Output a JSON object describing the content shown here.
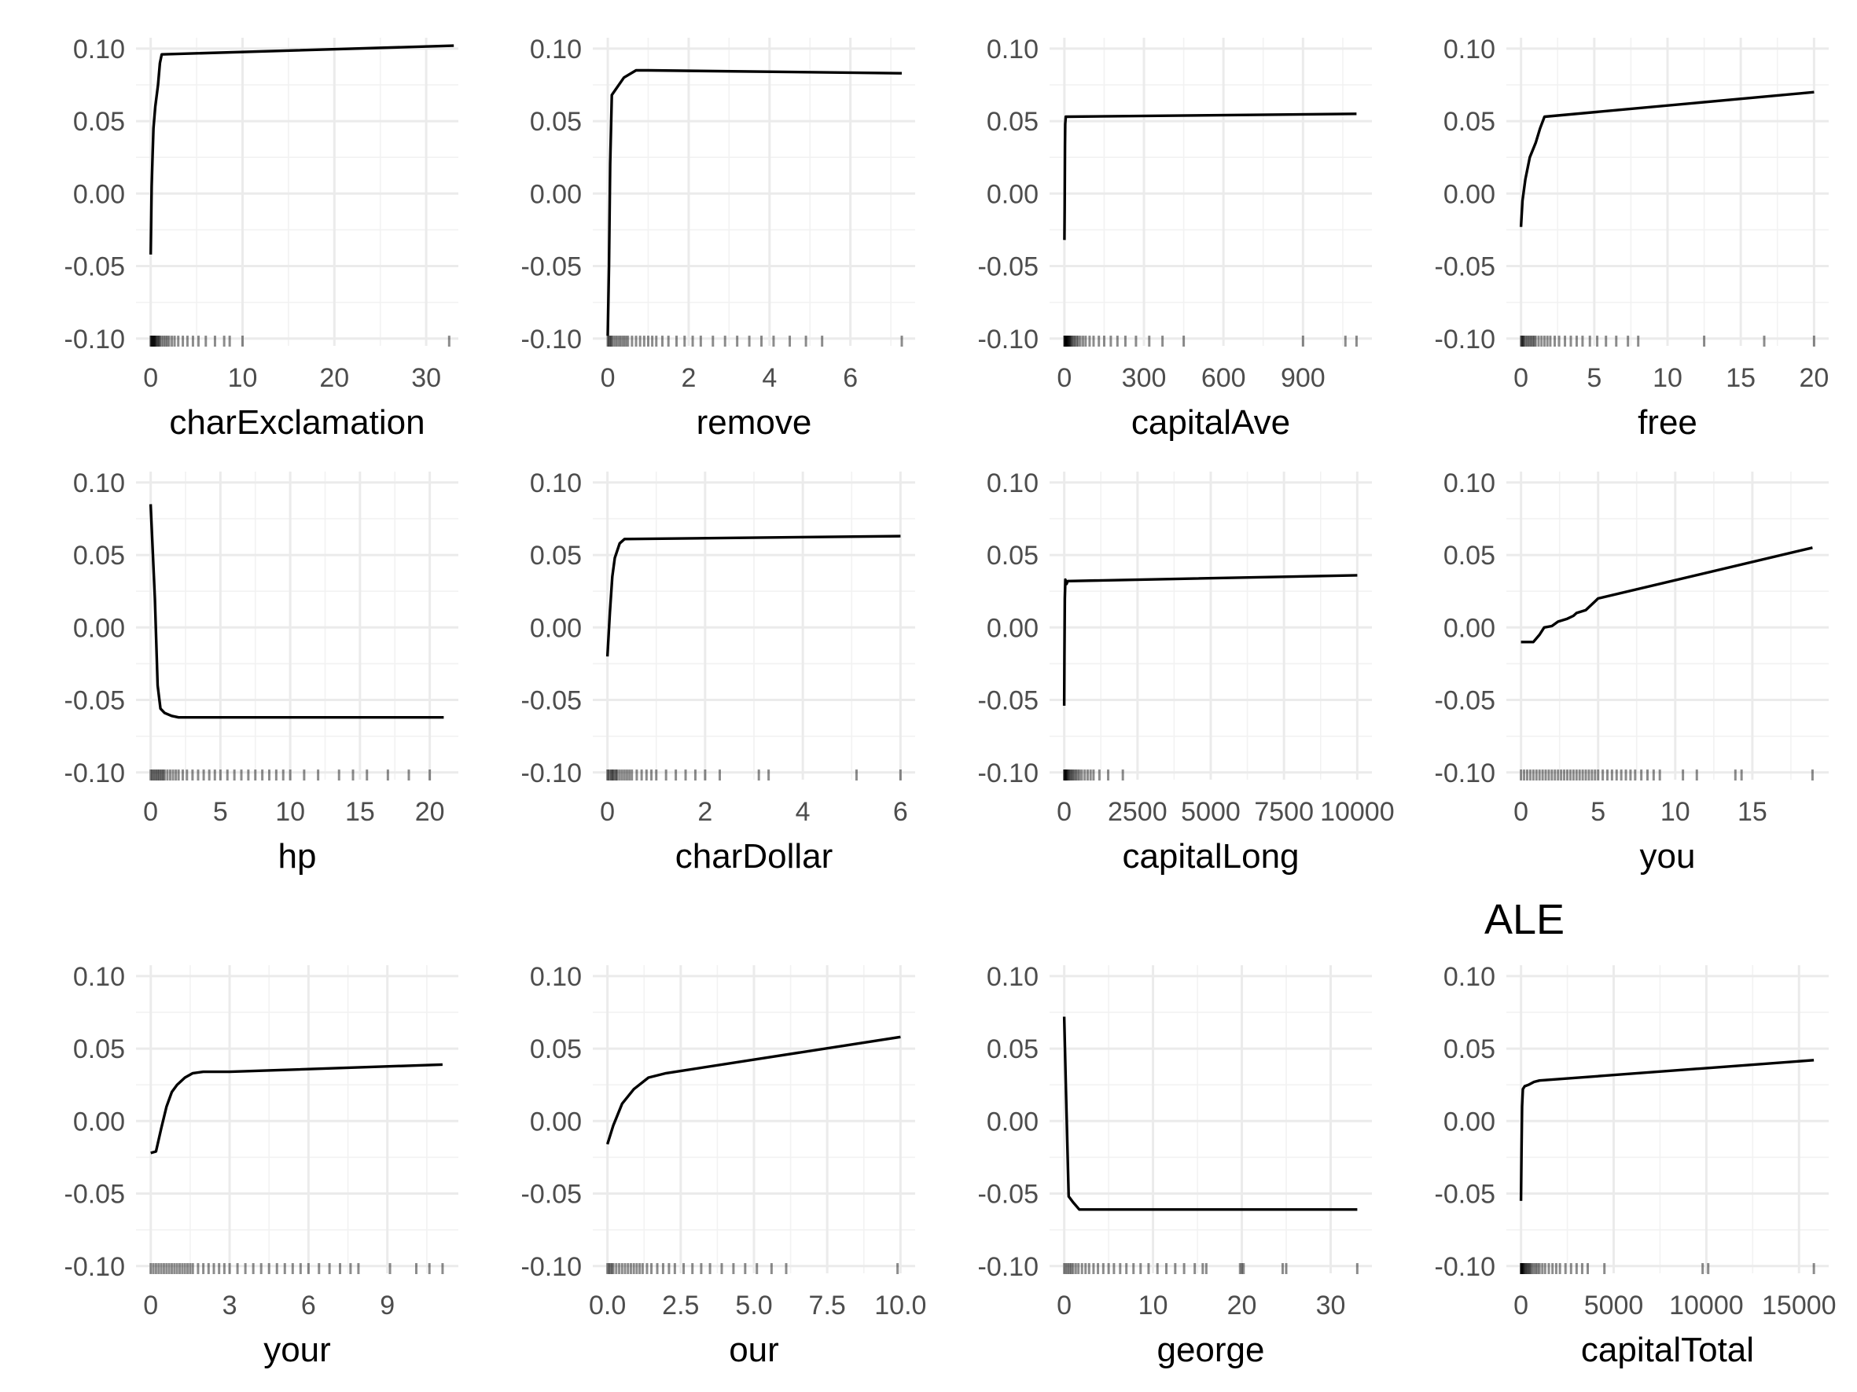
{
  "figure_title": "ALE",
  "chart_data": [
    {
      "type": "line",
      "xlabel": "charExclamation",
      "xlim": [
        -1.6,
        33.5
      ],
      "ylim": [
        -0.105,
        0.1075
      ],
      "xticks": [
        0,
        10,
        20,
        30
      ],
      "yticks": [
        -0.1,
        -0.05,
        0.0,
        0.05,
        0.1
      ],
      "grid": true,
      "x": [
        0,
        0.1,
        0.2,
        0.3,
        0.5,
        0.8,
        1.0,
        1.2,
        33
      ],
      "y": [
        -0.042,
        0.005,
        0.025,
        0.045,
        0.06,
        0.075,
        0.09,
        0.096,
        0.102
      ],
      "rug": [
        0,
        0.05,
        0.1,
        0.15,
        0.2,
        0.25,
        0.3,
        0.35,
        0.4,
        0.45,
        0.5,
        0.6,
        0.7,
        0.8,
        0.9,
        1.0,
        1.2,
        1.4,
        1.6,
        1.8,
        2.0,
        2.3,
        2.6,
        3.0,
        3.5,
        4.0,
        4.6,
        5.2,
        6.0,
        7.0,
        8.0,
        8.6,
        10.0,
        32.5
      ]
    },
    {
      "type": "line",
      "xlabel": "remove",
      "xlim": [
        -0.37,
        7.6
      ],
      "ylim": [
        -0.105,
        0.1075
      ],
      "xticks": [
        0,
        2,
        4,
        6
      ],
      "yticks": [
        -0.1,
        -0.05,
        0.0,
        0.05,
        0.1
      ],
      "grid": true,
      "x": [
        0,
        0.03,
        0.06,
        0.1,
        0.2,
        0.4,
        0.7,
        1.0,
        7.27
      ],
      "y": [
        -0.098,
        -0.05,
        0.02,
        0.068,
        0.072,
        0.08,
        0.085,
        0.085,
        0.083
      ],
      "rug": [
        0,
        0.02,
        0.05,
        0.08,
        0.1,
        0.15,
        0.2,
        0.25,
        0.3,
        0.35,
        0.4,
        0.45,
        0.5,
        0.6,
        0.7,
        0.8,
        0.9,
        1.0,
        1.1,
        1.2,
        1.35,
        1.5,
        1.7,
        1.9,
        2.1,
        2.3,
        2.6,
        2.9,
        3.2,
        3.5,
        3.8,
        4.1,
        4.5,
        4.9,
        5.3,
        7.27
      ]
    },
    {
      "type": "line",
      "xlabel": "capitalAve",
      "xlim": [
        -56,
        1160
      ],
      "ylim": [
        -0.105,
        0.1075
      ],
      "xticks": [
        0,
        300,
        600,
        900
      ],
      "yticks": [
        -0.1,
        -0.05,
        0.0,
        0.05,
        0.1
      ],
      "grid": true,
      "x": [
        0,
        1,
        2,
        3,
        5,
        1102
      ],
      "y": [
        -0.032,
        -0.01,
        0.033,
        0.048,
        0.053,
        0.055
      ],
      "rug": [
        0,
        1,
        2,
        3,
        4,
        5,
        6,
        7,
        8,
        9,
        10,
        12,
        14,
        16,
        18,
        20,
        23,
        26,
        30,
        35,
        40,
        46,
        52,
        60,
        70,
        80,
        95,
        110,
        130,
        150,
        175,
        200,
        230,
        270,
        320,
        370,
        450,
        900,
        1060,
        1102
      ]
    },
    {
      "type": "line",
      "xlabel": "free",
      "xlim": [
        -1.0,
        21.0
      ],
      "ylim": [
        -0.105,
        0.1075
      ],
      "xticks": [
        0,
        5,
        10,
        15,
        20
      ],
      "yticks": [
        -0.1,
        -0.05,
        0.0,
        0.05,
        0.1
      ],
      "grid": true,
      "x": [
        0,
        0.1,
        0.3,
        0.6,
        1.0,
        1.3,
        1.6,
        20
      ],
      "y": [
        -0.023,
        -0.005,
        0.01,
        0.025,
        0.035,
        0.045,
        0.053,
        0.07
      ],
      "rug": [
        0,
        0.05,
        0.1,
        0.15,
        0.2,
        0.3,
        0.4,
        0.5,
        0.6,
        0.7,
        0.8,
        0.9,
        1.0,
        1.2,
        1.4,
        1.6,
        1.8,
        2.0,
        2.3,
        2.6,
        3.0,
        3.4,
        3.8,
        4.2,
        4.7,
        5.2,
        5.8,
        6.5,
        7.3,
        8.0,
        12.5,
        16.6,
        20.0
      ]
    },
    {
      "type": "line",
      "xlabel": "hp",
      "xlim": [
        -1.05,
        22.05
      ],
      "ylim": [
        -0.105,
        0.1075
      ],
      "xticks": [
        0,
        5,
        10,
        15,
        20
      ],
      "yticks": [
        -0.1,
        -0.05,
        0.0,
        0.05,
        0.1
      ],
      "grid": true,
      "x": [
        0,
        0.3,
        0.5,
        0.7,
        1.0,
        1.5,
        2.0,
        21
      ],
      "y": [
        0.085,
        0.02,
        -0.04,
        -0.056,
        -0.059,
        -0.061,
        -0.062,
        -0.062
      ],
      "rug": [
        0,
        0.1,
        0.2,
        0.3,
        0.4,
        0.5,
        0.6,
        0.7,
        0.8,
        0.9,
        1.0,
        1.2,
        1.4,
        1.6,
        1.8,
        2.0,
        2.3,
        2.6,
        3.0,
        3.4,
        3.8,
        4.2,
        4.6,
        5.0,
        5.5,
        6.0,
        6.5,
        7.0,
        7.5,
        8.0,
        8.5,
        9.0,
        9.5,
        10.0,
        11.0,
        12.0,
        13.5,
        14.5,
        15.5,
        17.0,
        18.5,
        20.0
      ]
    },
    {
      "type": "line",
      "xlabel": "charDollar",
      "xlim": [
        -0.3,
        6.3
      ],
      "ylim": [
        -0.105,
        0.1075
      ],
      "xticks": [
        0,
        2,
        4,
        6
      ],
      "yticks": [
        -0.1,
        -0.05,
        0.0,
        0.05,
        0.1
      ],
      "grid": true,
      "x": [
        0,
        0.05,
        0.1,
        0.15,
        0.25,
        0.35,
        6.0
      ],
      "y": [
        -0.02,
        0.01,
        0.035,
        0.048,
        0.058,
        0.061,
        0.063
      ],
      "rug": [
        0,
        0.02,
        0.05,
        0.08,
        0.1,
        0.12,
        0.15,
        0.18,
        0.2,
        0.25,
        0.3,
        0.35,
        0.4,
        0.45,
        0.5,
        0.6,
        0.7,
        0.8,
        0.9,
        1.0,
        1.2,
        1.4,
        1.6,
        1.8,
        2.0,
        2.3,
        3.1,
        3.3,
        5.1,
        6.0
      ]
    },
    {
      "type": "line",
      "xlabel": "capitalLong",
      "xlim": [
        -500,
        10500
      ],
      "ylim": [
        -0.105,
        0.1075
      ],
      "xticks": [
        0,
        2500,
        5000,
        7500,
        10000
      ],
      "yticks": [
        -0.1,
        -0.05,
        0.0,
        0.05,
        0.1
      ],
      "grid": true,
      "x": [
        0,
        8,
        20,
        40,
        80,
        120,
        10000
      ],
      "y": [
        -0.054,
        -0.02,
        0.02,
        0.033,
        0.03,
        0.032,
        0.036
      ],
      "rug": [
        0,
        10,
        20,
        30,
        40,
        50,
        60,
        80,
        100,
        120,
        150,
        180,
        220,
        260,
        300,
        350,
        400,
        460,
        520,
        600,
        700,
        800,
        900,
        1000,
        1200,
        1500,
        2000
      ]
    },
    {
      "type": "line",
      "xlabel": "you",
      "xlim": [
        -0.95,
        19.95
      ],
      "ylim": [
        -0.105,
        0.1075
      ],
      "xticks": [
        0,
        5,
        10,
        15
      ],
      "yticks": [
        -0.1,
        -0.05,
        0.0,
        0.05,
        0.1
      ],
      "grid": true,
      "x": [
        0,
        0.8,
        1.2,
        1.5,
        2.0,
        2.4,
        3.0,
        3.4,
        3.6,
        4.2,
        4.8,
        5.0,
        18.9
      ],
      "y": [
        -0.01,
        -0.01,
        -0.005,
        0.0,
        0.001,
        0.004,
        0.006,
        0.008,
        0.01,
        0.012,
        0.018,
        0.02,
        0.055
      ],
      "rug": [
        0,
        0.2,
        0.4,
        0.6,
        0.8,
        1.0,
        1.2,
        1.4,
        1.6,
        1.8,
        2.0,
        2.2,
        2.4,
        2.6,
        2.8,
        3.0,
        3.2,
        3.4,
        3.6,
        3.8,
        4.0,
        4.2,
        4.4,
        4.6,
        4.8,
        5.0,
        5.3,
        5.6,
        5.9,
        6.2,
        6.5,
        6.8,
        7.1,
        7.4,
        7.8,
        8.2,
        8.6,
        9.0,
        10.5,
        11.4,
        13.9,
        14.3,
        18.9
      ]
    },
    {
      "type": "line",
      "xlabel": "your",
      "xlim": [
        -0.56,
        11.7
      ],
      "ylim": [
        -0.105,
        0.1075
      ],
      "xticks": [
        0,
        3,
        6,
        9
      ],
      "yticks": [
        -0.1,
        -0.05,
        0.0,
        0.05,
        0.1
      ],
      "grid": true,
      "x": [
        0,
        0.2,
        0.4,
        0.6,
        0.8,
        1.0,
        1.3,
        1.6,
        2.0,
        3.0,
        11.1
      ],
      "y": [
        -0.022,
        -0.021,
        -0.005,
        0.01,
        0.02,
        0.025,
        0.03,
        0.033,
        0.034,
        0.034,
        0.039
      ],
      "rug": [
        0,
        0.1,
        0.2,
        0.3,
        0.4,
        0.5,
        0.6,
        0.7,
        0.8,
        0.9,
        1.0,
        1.1,
        1.2,
        1.3,
        1.4,
        1.5,
        1.6,
        1.8,
        2.0,
        2.2,
        2.4,
        2.6,
        2.8,
        3.0,
        3.3,
        3.6,
        3.9,
        4.2,
        4.5,
        4.8,
        5.1,
        5.4,
        5.7,
        6.0,
        6.4,
        6.8,
        7.2,
        7.6,
        7.9,
        9.1,
        10.1,
        10.6,
        11.1
      ]
    },
    {
      "type": "line",
      "xlabel": "our",
      "xlim": [
        -0.5,
        10.5
      ],
      "ylim": [
        -0.105,
        0.1075
      ],
      "xticks": [
        0.0,
        2.5,
        5.0,
        7.5,
        10.0
      ],
      "yticks": [
        -0.1,
        -0.05,
        0.0,
        0.05,
        0.1
      ],
      "grid": true,
      "x": [
        0,
        0.2,
        0.5,
        0.9,
        1.4,
        2.0,
        10.0
      ],
      "y": [
        -0.016,
        -0.003,
        0.012,
        0.022,
        0.03,
        0.033,
        0.058
      ],
      "rug": [
        0,
        0.05,
        0.1,
        0.15,
        0.2,
        0.3,
        0.4,
        0.5,
        0.6,
        0.7,
        0.8,
        0.9,
        1.0,
        1.1,
        1.2,
        1.35,
        1.5,
        1.7,
        1.9,
        2.1,
        2.3,
        2.6,
        2.9,
        3.2,
        3.5,
        3.9,
        4.3,
        4.7,
        5.1,
        5.6,
        6.1,
        9.9
      ]
    },
    {
      "type": "line",
      "xlabel": "george",
      "xlim": [
        -1.65,
        34.65
      ],
      "ylim": [
        -0.105,
        0.1075
      ],
      "xticks": [
        0,
        10,
        20,
        30
      ],
      "yticks": [
        -0.1,
        -0.05,
        0.0,
        0.05,
        0.1
      ],
      "grid": true,
      "x": [
        0,
        0.2,
        0.5,
        1.0,
        1.7,
        33
      ],
      "y": [
        0.072,
        0.02,
        -0.052,
        -0.056,
        -0.061,
        -0.061
      ],
      "rug": [
        0,
        0.2,
        0.4,
        0.6,
        0.8,
        1.0,
        1.3,
        1.6,
        2.0,
        2.4,
        2.8,
        3.3,
        3.8,
        4.4,
        5.0,
        5.6,
        6.3,
        7.0,
        7.8,
        8.6,
        9.5,
        10.5,
        11.5,
        12.5,
        13.5,
        14.7,
        15.6,
        16.0,
        19.8,
        20.0,
        20.2,
        24.6,
        25.0,
        33.0
      ]
    },
    {
      "type": "line",
      "xlabel": "capitalTotal",
      "xlim": [
        -790,
        16600
      ],
      "ylim": [
        -0.105,
        0.1075
      ],
      "xticks": [
        0,
        5000,
        10000,
        15000
      ],
      "yticks": [
        -0.1,
        -0.05,
        0.0,
        0.05,
        0.1
      ],
      "grid": true,
      "x": [
        0,
        30,
        60,
        100,
        200,
        400,
        700,
        1000,
        15800
      ],
      "y": [
        -0.055,
        -0.02,
        0.01,
        0.022,
        0.024,
        0.025,
        0.027,
        0.028,
        0.042
      ],
      "rug": [
        0,
        10,
        20,
        30,
        40,
        60,
        80,
        100,
        130,
        160,
        200,
        250,
        300,
        350,
        400,
        460,
        520,
        600,
        700,
        800,
        900,
        1000,
        1150,
        1300,
        1500,
        1700,
        1900,
        2100,
        2400,
        2700,
        3000,
        3300,
        3600,
        4500,
        9800,
        10100,
        15800
      ]
    }
  ]
}
